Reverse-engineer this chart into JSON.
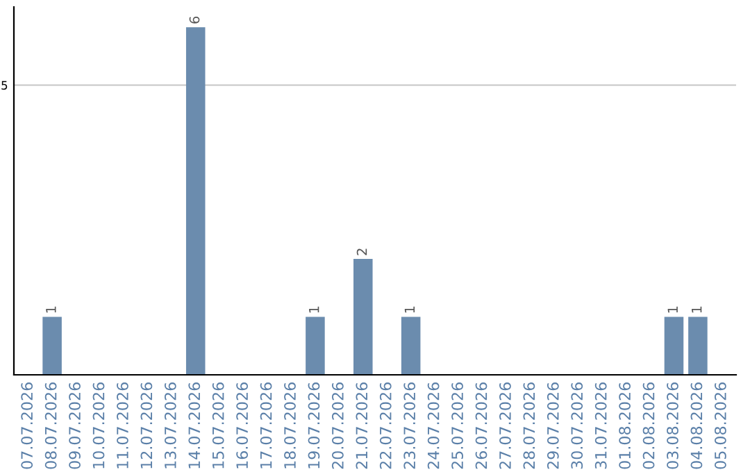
{
  "chart_data": {
    "type": "bar",
    "categories": [
      "07.07.2026",
      "08.07.2026",
      "09.07.2026",
      "10.07.2026",
      "11.07.2026",
      "12.07.2026",
      "13.07.2026",
      "14.07.2026",
      "15.07.2026",
      "16.07.2026",
      "17.07.2026",
      "18.07.2026",
      "19.07.2026",
      "20.07.2026",
      "21.07.2026",
      "22.07.2026",
      "23.07.2026",
      "24.07.2026",
      "25.07.2026",
      "26.07.2026",
      "27.07.2026",
      "28.07.2026",
      "29.07.2026",
      "30.07.2026",
      "31.07.2026",
      "01.08.2026",
      "02.08.2026",
      "03.08.2026",
      "04.08.2026",
      "05.08.2026"
    ],
    "values": [
      0,
      1,
      0,
      0,
      0,
      0,
      0,
      6,
      0,
      0,
      0,
      0,
      1,
      0,
      2,
      0,
      1,
      0,
      0,
      0,
      0,
      0,
      0,
      0,
      0,
      0,
      0,
      1,
      1,
      0
    ],
    "color": "#6b8cae",
    "value_labels": [
      null,
      "1",
      null,
      null,
      null,
      null,
      null,
      "6",
      null,
      null,
      null,
      null,
      "1",
      null,
      "2",
      null,
      "1",
      null,
      null,
      null,
      null,
      null,
      null,
      null,
      null,
      null,
      null,
      "1",
      "1",
      null
    ],
    "ylim": [
      0,
      6.35
    ],
    "yticks": [
      5
    ],
    "grid": "y"
  }
}
